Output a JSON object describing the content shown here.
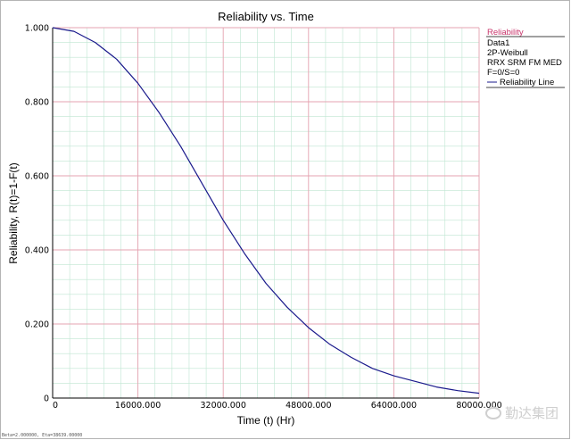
{
  "chart_data": {
    "type": "line",
    "title": "Reliability vs. Time",
    "xlabel": "Time (t) (Hr)",
    "ylabel": "Reliability, R(t)=1-F(t)",
    "xlim": [
      0,
      80000
    ],
    "ylim": [
      0,
      1
    ],
    "x_ticks": [
      0,
      16000,
      32000,
      48000,
      64000,
      80000
    ],
    "x_tick_labels": [
      "0",
      "16000.000",
      "32000.000",
      "48000.000",
      "64000.000",
      "80000.000"
    ],
    "y_ticks": [
      0,
      0.2,
      0.4,
      0.6,
      0.8,
      1.0
    ],
    "y_tick_labels": [
      "0",
      "0.200",
      "0.400",
      "0.600",
      "0.800",
      "1.000"
    ],
    "grid": true,
    "minor_grid": true,
    "legend_position": "right",
    "series": [
      {
        "name": "Reliability Line",
        "color": "#1a1a8c",
        "x": [
          0,
          4000,
          8000,
          12000,
          16000,
          20000,
          24000,
          28000,
          32000,
          36000,
          40000,
          44000,
          48000,
          52000,
          56000,
          60000,
          64000,
          68000,
          72000,
          76000,
          80000
        ],
        "y": [
          1.0,
          0.99,
          0.96,
          0.915,
          0.85,
          0.77,
          0.68,
          0.58,
          0.48,
          0.39,
          0.31,
          0.245,
          0.19,
          0.145,
          0.11,
          0.08,
          0.06,
          0.045,
          0.03,
          0.02,
          0.013
        ]
      }
    ]
  },
  "legend": {
    "header": "Reliability",
    "lines": [
      "Data1",
      "2P-Weibull",
      "RRX SRM FM MED",
      "F=0/S=0"
    ],
    "series_label": "Reliability Line"
  },
  "footer_text": "Beta=2.000000, Eta=38639.00000",
  "watermark_text": "勤达集团",
  "colors": {
    "major_grid": "#e6a3b1",
    "minor_grid": "#bfe6d2",
    "axis": "#000000",
    "legend_header": "#c8356b"
  }
}
